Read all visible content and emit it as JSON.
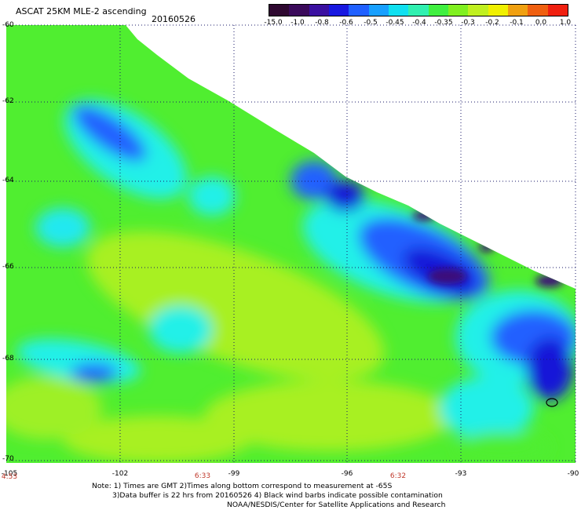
{
  "header": {
    "title": "ASCAT 25KM MLE-2 ascending",
    "date": "20160526"
  },
  "colorbar": {
    "labels": [
      "-15.0",
      "-1.0",
      "-0.8",
      "-0.6",
      "-0.5",
      "-0.45",
      "-0.4",
      "-0.35",
      "-0.3",
      "-0.2",
      "-0.1",
      "0.0",
      "1.0"
    ],
    "colors": [
      "#2e0830",
      "#3a0a5a",
      "#3a10a0",
      "#1818e0",
      "#2060ff",
      "#18a0ff",
      "#10e0f0",
      "#30f0b0",
      "#40f040",
      "#80f020",
      "#c0f020",
      "#f0f000",
      "#f0a010",
      "#f06010",
      "#f02010"
    ]
  },
  "axes": {
    "lat_labels": [
      "-60",
      "-62",
      "-64",
      "-66",
      "-68",
      "-70"
    ],
    "lon_labels": [
      "-105",
      "-102",
      "-99",
      "-96",
      "-93",
      "-90"
    ],
    "time_labels": [
      "4:53",
      "6:33",
      "6:32"
    ]
  },
  "notes": {
    "line1": "Note: 1) Times are GMT 2)Times along bottom correspond to measurement at -65S",
    "line2": "3)Data buffer is 22 hrs from 20160526 4) Black wind barbs indicate possible contamination",
    "line3": "NOAA/NESDIS/Center for Satellite Applications and Research"
  },
  "palette": {
    "green": "#50ee30",
    "lime": "#a8f020",
    "cyan": "#20f0e8",
    "blue": "#2060ff",
    "darkblue": "#1818d8",
    "purple": "#3c0a78"
  }
}
